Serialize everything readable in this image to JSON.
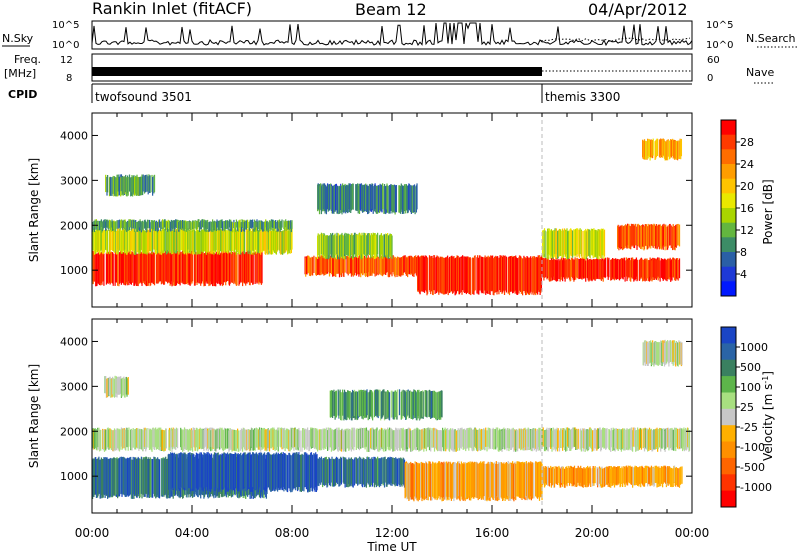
{
  "header": {
    "station": "Rankin Inlet (fitACF)",
    "beam": "Beam 12",
    "date": "04/Apr/2012"
  },
  "summary_panels": {
    "nsky_label": "N.Sky",
    "nsky_ticks": [
      "10^5",
      "10^0"
    ],
    "nsearch_label": "N.Search",
    "nsearch_ticks": [
      "10^5",
      "10^0"
    ],
    "freq_label_1": "Freq.",
    "freq_label_2": "[MHz]",
    "freq_ticks": [
      "12",
      "8"
    ],
    "nave_label": "Nave",
    "nave_ticks": [
      "60",
      "0"
    ],
    "cpid_label": "CPID",
    "cpid_segments": [
      {
        "name": "twofsound 3501",
        "start_h": 0,
        "end_h": 18
      },
      {
        "name": "themis 3300",
        "start_h": 18,
        "end_h": 24
      }
    ]
  },
  "colorbars": {
    "power": {
      "label": "Power [dB]",
      "ticks": [
        "28",
        "24",
        "20",
        "16",
        "12",
        "8",
        "4"
      ],
      "colors": [
        "#ff0000",
        "#ff3a00",
        "#ff6d00",
        "#ff9d00",
        "#ffc400",
        "#e9e800",
        "#a9d500",
        "#63b63f",
        "#3c8c66",
        "#2a5fa6",
        "#1e39d6",
        "#0018ff"
      ]
    },
    "velocity": {
      "label": "Velocity [m s^-1]",
      "ticks": [
        "1000",
        "500",
        "100",
        "25",
        "-25",
        "-100",
        "-500",
        "-1000"
      ],
      "colors": [
        "#1a45c5",
        "#2a64a6",
        "#3a8060",
        "#5db54a",
        "#a8df80",
        "#c7c7c7",
        "#ffb000",
        "#ff9000",
        "#ff6500",
        "#ff3300",
        "#ff0000"
      ]
    }
  },
  "chart_data": [
    {
      "type": "heatmap",
      "title": "Power",
      "ylabel": "Slant Range [km]",
      "xlabel": "Time UT",
      "x_ticks": [
        "00:00",
        "04:00",
        "08:00",
        "12:00",
        "16:00",
        "20:00",
        "00:00"
      ],
      "y_ticks": [
        1000,
        2000,
        3000,
        4000
      ],
      "xlim_hours": [
        0,
        24
      ],
      "ylim_km": [
        180,
        4500
      ],
      "colorbar": "Power [dB]",
      "regions": [
        {
          "t0": 0.0,
          "t1": 6.8,
          "r0": 700,
          "r1": 1400,
          "value_db": 26
        },
        {
          "t0": 0.0,
          "t1": 8.0,
          "r0": 1400,
          "r1": 1900,
          "value_db": 14
        },
        {
          "t0": 0.0,
          "t1": 8.0,
          "r0": 1900,
          "r1": 2100,
          "value_db": 8
        },
        {
          "t0": 8.5,
          "t1": 13.0,
          "r0": 900,
          "r1": 1300,
          "value_db": 24
        },
        {
          "t0": 9.0,
          "t1": 12.0,
          "r0": 1300,
          "r1": 1800,
          "value_db": 12
        },
        {
          "t0": 13.0,
          "t1": 18.0,
          "r0": 500,
          "r1": 1300,
          "value_db": 26
        },
        {
          "t0": 18.0,
          "t1": 23.5,
          "r0": 800,
          "r1": 1250,
          "value_db": 28
        },
        {
          "t0": 18.0,
          "t1": 20.5,
          "r0": 1300,
          "r1": 1900,
          "value_db": 14
        },
        {
          "t0": 21.0,
          "t1": 23.5,
          "r0": 1500,
          "r1": 2000,
          "value_db": 24
        },
        {
          "t0": 0.5,
          "t1": 2.5,
          "r0": 2700,
          "r1": 3100,
          "value_db": 8
        },
        {
          "t0": 9.0,
          "t1": 13.0,
          "r0": 2300,
          "r1": 2900,
          "value_db": 6
        },
        {
          "t0": 22.0,
          "t1": 23.6,
          "r0": 3500,
          "r1": 3900,
          "value_db": 20
        }
      ]
    },
    {
      "type": "heatmap",
      "title": "Velocity",
      "ylabel": "Slant Range [km]",
      "xlabel": "Time UT",
      "x_ticks": [
        "00:00",
        "04:00",
        "08:00",
        "12:00",
        "16:00",
        "20:00",
        "00:00"
      ],
      "y_ticks": [
        1000,
        2000,
        3000,
        4000
      ],
      "xlim_hours": [
        0,
        24
      ],
      "ylim_km": [
        180,
        4500
      ],
      "colorbar": "Velocity [m s^-1]",
      "regions": [
        {
          "t0": 0.0,
          "t1": 7.0,
          "r0": 550,
          "r1": 1400,
          "value_ms": 200
        },
        {
          "t0": 3.0,
          "t1": 9.0,
          "r0": 700,
          "r1": 1500,
          "value_ms": 600
        },
        {
          "t0": 9.0,
          "t1": 12.5,
          "r0": 800,
          "r1": 1400,
          "value_ms": 300
        },
        {
          "t0": 12.5,
          "t1": 18.0,
          "r0": 500,
          "r1": 1300,
          "value_ms": -400
        },
        {
          "t0": 18.0,
          "t1": 23.6,
          "r0": 800,
          "r1": 1200,
          "value_ms": -450
        },
        {
          "t0": 0.0,
          "t1": 23.9,
          "r0": 1600,
          "r1": 2050,
          "value_ms": 0
        },
        {
          "t0": 9.5,
          "t1": 14.0,
          "r0": 2300,
          "r1": 2900,
          "value_ms": 50
        },
        {
          "t0": 0.5,
          "t1": 1.5,
          "r0": 2800,
          "r1": 3200,
          "value_ms": 0
        },
        {
          "t0": 22.0,
          "t1": 23.6,
          "r0": 3500,
          "r1": 4000,
          "value_ms": 0
        }
      ]
    }
  ]
}
